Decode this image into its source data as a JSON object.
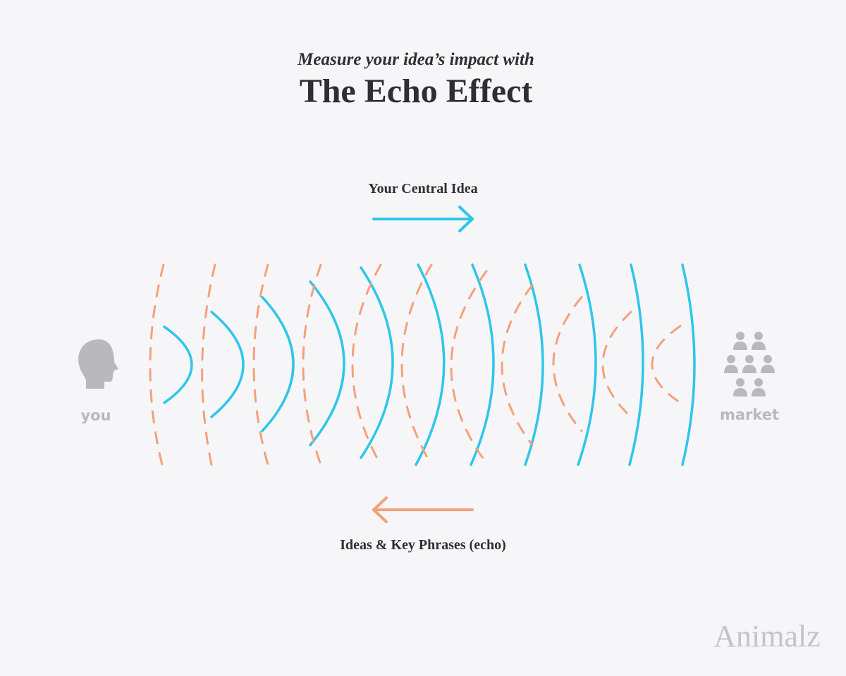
{
  "header": {
    "subtitle": "Measure your idea’s impact with",
    "title": "The Echo Effect"
  },
  "labels": {
    "forward": "Your Central Idea",
    "echo": "Ideas & Key Phrases (echo)",
    "source": "you",
    "target": "market"
  },
  "footer": {
    "brand": "Animalz"
  }
}
